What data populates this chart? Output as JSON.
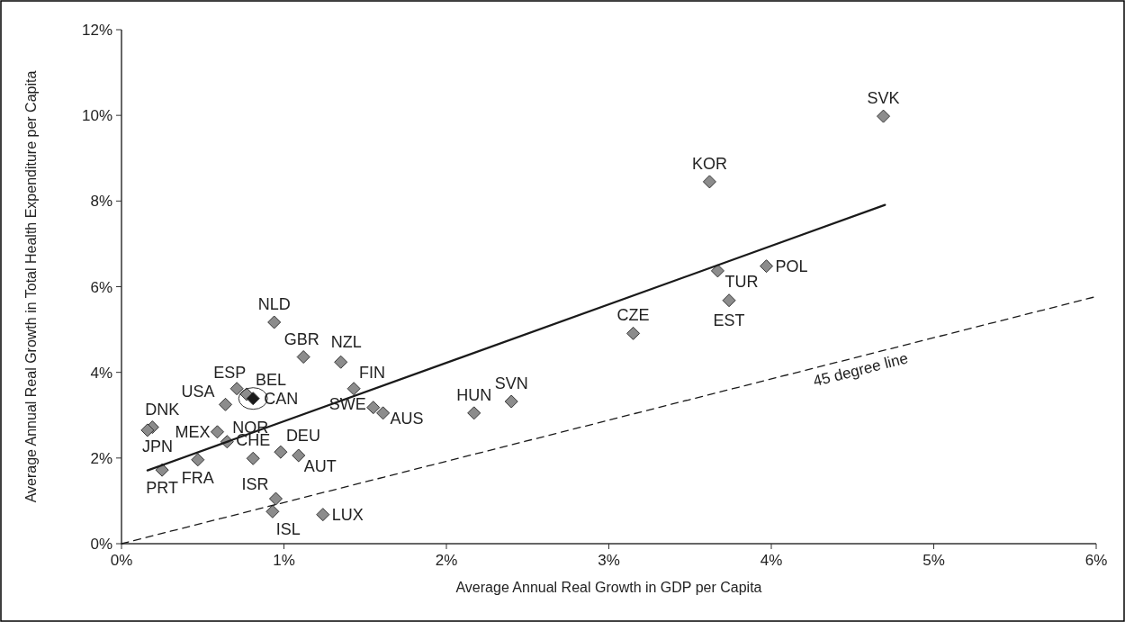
{
  "chart_data": {
    "type": "scatter",
    "xlabel": "Average Annual Real Growth in GDP per Capita",
    "ylabel": "Average Annual Real Growth in Total Health Expenditure per Capita",
    "xlim": [
      0,
      6
    ],
    "xticks": [
      {
        "value": 0,
        "label": "0%"
      },
      {
        "value": 1,
        "label": "1%"
      },
      {
        "value": 2,
        "label": "2%"
      },
      {
        "value": 3,
        "label": "3%"
      },
      {
        "value": 4,
        "label": "4%"
      },
      {
        "value": 5,
        "label": "5%"
      },
      {
        "value": 6,
        "label": "6%"
      }
    ],
    "ylim": [
      0,
      12
    ],
    "yticks": [
      {
        "value": 0,
        "label": "0%"
      },
      {
        "value": 2,
        "label": "2%"
      },
      {
        "value": 4,
        "label": "4%"
      },
      {
        "value": 6,
        "label": "6%"
      },
      {
        "value": 8,
        "label": "8%"
      },
      {
        "value": 10,
        "label": "10%"
      },
      {
        "value": 12,
        "label": "12%"
      }
    ],
    "grid": false,
    "series": [
      {
        "marker": "diamond",
        "color": "#8c8c8c",
        "colors": [
          "#8c8c8c",
          "#8c8c8c",
          "#8c8c8c",
          "#8c8c8c",
          "#8c8c8c",
          "#1a1a1a",
          "#8c8c8c",
          "#8c8c8c",
          "#8c8c8c",
          "#8c8c8c",
          "#8c8c8c",
          "#8c8c8c",
          "#8c8c8c",
          "#8c8c8c",
          "#8c8c8c",
          "#8c8c8c",
          "#8c8c8c",
          "#8c8c8c",
          "#8c8c8c",
          "#8c8c8c",
          "#8c8c8c",
          "#8c8c8c",
          "#8c8c8c",
          "#8c8c8c",
          "#8c8c8c",
          "#8c8c8c",
          "#8c8c8c",
          "#8c8c8c",
          "#8c8c8c",
          "#8c8c8c"
        ],
        "x": [
          0.94,
          1.12,
          1.35,
          0.71,
          0.77,
          0.81,
          0.64,
          1.43,
          1.55,
          1.61,
          0.19,
          0.16,
          0.59,
          0.65,
          0.81,
          0.98,
          1.09,
          0.47,
          0.25,
          0.95,
          0.93,
          1.24,
          2.17,
          2.4,
          4.69,
          3.62,
          3.67,
          3.97,
          3.74,
          3.15
        ],
        "values": [
          5.17,
          4.36,
          4.24,
          3.62,
          3.49,
          3.39,
          3.25,
          3.62,
          3.18,
          3.05,
          2.72,
          2.65,
          2.61,
          2.38,
          1.99,
          2.14,
          2.06,
          1.96,
          1.72,
          1.05,
          0.75,
          0.68,
          3.05,
          3.32,
          9.98,
          8.45,
          6.37,
          6.48,
          5.68,
          4.91
        ]
      },
      {
        "type": "line",
        "marker": "none",
        "line_style": "solid",
        "color": "#1a1a1a",
        "x": [
          0.16,
          4.7
        ],
        "values": [
          1.71,
          7.91
        ]
      },
      {
        "type": "line",
        "marker": "none",
        "line_style": "dashed",
        "color": "#1a1a1a",
        "x": [
          0,
          6
        ],
        "values": [
          0,
          5.77
        ]
      }
    ],
    "annotations": [
      {
        "text": "NLD",
        "x": 0.94,
        "y": 5.17
      },
      {
        "text": "GBR",
        "x": 1.12,
        "y": 4.36
      },
      {
        "text": "NZL",
        "x": 1.35,
        "y": 4.24
      },
      {
        "text": "ESP",
        "x": 0.71,
        "y": 3.62
      },
      {
        "text": "BEL",
        "x": 0.77,
        "y": 3.49
      },
      {
        "text": "CAN",
        "x": 0.81,
        "y": 3.39
      },
      {
        "text": "USA",
        "x": 0.64,
        "y": 3.25
      },
      {
        "text": "FIN",
        "x": 1.43,
        "y": 3.62
      },
      {
        "text": "SWE",
        "x": 1.55,
        "y": 3.18
      },
      {
        "text": "AUS",
        "x": 1.61,
        "y": 3.05
      },
      {
        "text": "DNK",
        "x": 0.19,
        "y": 2.72
      },
      {
        "text": "JPN",
        "x": 0.16,
        "y": 2.65
      },
      {
        "text": "MEX",
        "x": 0.59,
        "y": 2.61
      },
      {
        "text": "NOR",
        "x": 0.65,
        "y": 2.38
      },
      {
        "text": "CHE",
        "x": 0.81,
        "y": 1.99
      },
      {
        "text": "DEU",
        "x": 0.98,
        "y": 2.14
      },
      {
        "text": "AUT",
        "x": 1.09,
        "y": 2.06
      },
      {
        "text": "FRA",
        "x": 0.47,
        "y": 1.96
      },
      {
        "text": "PRT",
        "x": 0.25,
        "y": 1.72
      },
      {
        "text": "ISR",
        "x": 0.95,
        "y": 1.05
      },
      {
        "text": "ISL",
        "x": 0.93,
        "y": 0.75
      },
      {
        "text": "LUX",
        "x": 1.24,
        "y": 0.68
      },
      {
        "text": "HUN",
        "x": 2.17,
        "y": 3.05
      },
      {
        "text": "SVN",
        "x": 2.4,
        "y": 3.32
      },
      {
        "text": "SVK",
        "x": 4.69,
        "y": 9.98
      },
      {
        "text": "KOR",
        "x": 3.62,
        "y": 8.45
      },
      {
        "text": "TUR",
        "x": 3.67,
        "y": 6.37
      },
      {
        "text": "POL",
        "x": 3.97,
        "y": 6.48
      },
      {
        "text": "EST",
        "x": 3.74,
        "y": 5.68
      },
      {
        "text": "CZE",
        "x": 3.15,
        "y": 4.91
      },
      "45 degree line"
    ]
  }
}
